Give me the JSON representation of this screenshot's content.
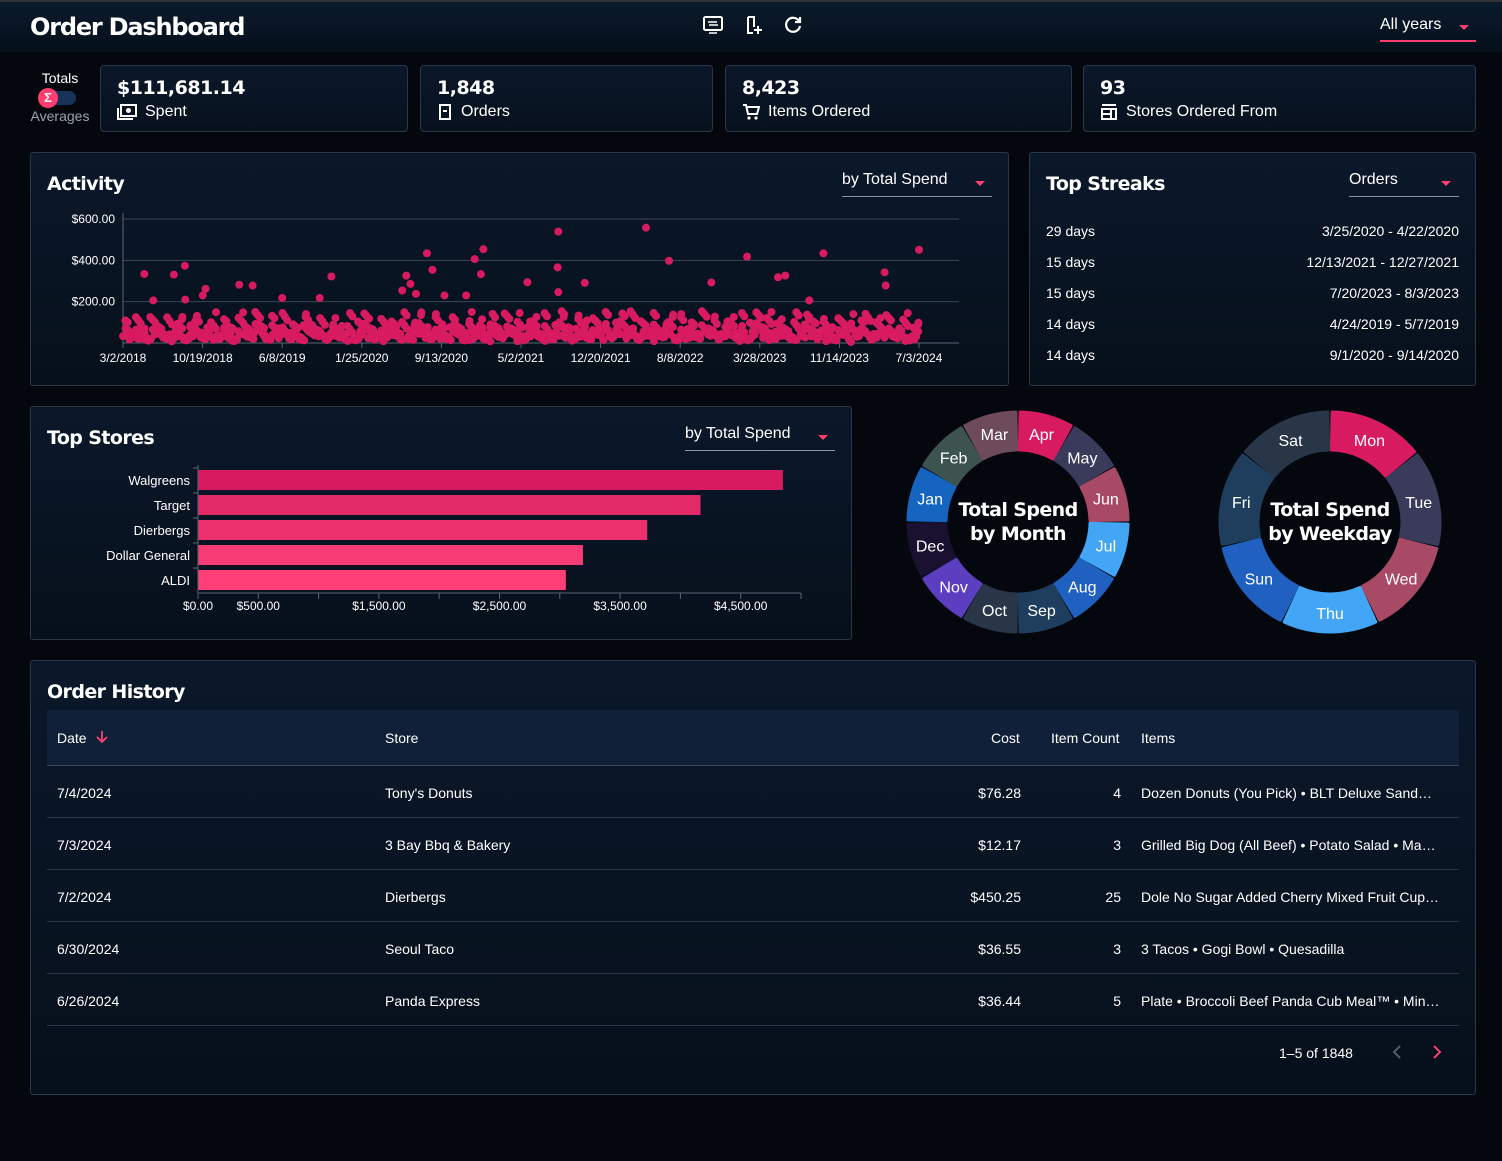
{
  "header": {
    "title": "Order Dashboard",
    "year_filter": "All years",
    "icons": [
      "display-settings-icon",
      "add-receipt-icon",
      "refresh-icon"
    ]
  },
  "mode_toggle": {
    "on_label": "Totals",
    "off_label": "Averages",
    "symbol": "Σ"
  },
  "stats": [
    {
      "value": "$111,681.14",
      "label": "Spent",
      "icon": "money-icon"
    },
    {
      "value": "1,848",
      "label": "Orders",
      "icon": "order-icon"
    },
    {
      "value": "8,423",
      "label": "Items Ordered",
      "icon": "cart-icon"
    },
    {
      "value": "93",
      "label": "Stores Ordered From",
      "icon": "store-icon"
    }
  ],
  "activity": {
    "title": "Activity",
    "sort": "by Total Spend"
  },
  "streaks": {
    "title": "Top Streaks",
    "sort": "Orders",
    "items": [
      {
        "length": "29 days",
        "range": "3/25/2020 - 4/22/2020"
      },
      {
        "length": "15 days",
        "range": "12/13/2021 - 12/27/2021"
      },
      {
        "length": "15 days",
        "range": "7/20/2023 - 8/3/2023"
      },
      {
        "length": "14 days",
        "range": "4/24/2019 - 5/7/2019"
      },
      {
        "length": "14 days",
        "range": "9/1/2020 - 9/14/2020"
      }
    ]
  },
  "top_stores": {
    "title": "Top Stores",
    "sort": "by Total Spend"
  },
  "month_donut": {
    "title_line1": "Total Spend",
    "title_line2": "by Month"
  },
  "weekday_donut": {
    "title_line1": "Total Spend",
    "title_line2": "by Weekday"
  },
  "chart_data": [
    {
      "type": "scatter",
      "name": "activity",
      "x_start": "3/2/2018",
      "x_unit": "days since 3/2/2018",
      "xlim": [
        0,
        2315
      ],
      "ylim": [
        0,
        600
      ],
      "y_ticks": [
        "$600.00",
        "$400.00",
        "$200.00"
      ],
      "y_tick_values": [
        600,
        400,
        200
      ],
      "x_ticks": [
        "3/2/2018",
        "10/19/2018",
        "6/8/2019",
        "1/25/2020",
        "9/13/2020",
        "5/2/2021",
        "12/20/2021",
        "8/8/2022",
        "3/28/2023",
        "11/14/2023",
        "7/3/2024"
      ],
      "outliers": [
        [
          62,
          334
        ],
        [
          88,
          206
        ],
        [
          148,
          331
        ],
        [
          180,
          374
        ],
        [
          181,
          210
        ],
        [
          240,
          262
        ],
        [
          232,
          230
        ],
        [
          338,
          282
        ],
        [
          377,
          278
        ],
        [
          463,
          218
        ],
        [
          606,
          322
        ],
        [
          572,
          218
        ],
        [
          824,
          326
        ],
        [
          836,
          286
        ],
        [
          812,
          254
        ],
        [
          884,
          434
        ],
        [
          900,
          354
        ],
        [
          852,
          238
        ],
        [
          935,
          230
        ],
        [
          1023,
          406
        ],
        [
          1048,
          454
        ],
        [
          1041,
          333
        ],
        [
          998,
          230
        ],
        [
          1176,
          294
        ],
        [
          1266,
          539
        ],
        [
          1264,
          366
        ],
        [
          1266,
          246
        ],
        [
          1343,
          291
        ],
        [
          1521,
          558
        ],
        [
          1588,
          398
        ],
        [
          1711,
          293
        ],
        [
          1815,
          418
        ],
        [
          1905,
          318
        ],
        [
          1926,
          326
        ],
        [
          1996,
          206
        ],
        [
          2037,
          434
        ],
        [
          2215,
          342
        ],
        [
          2218,
          278
        ],
        [
          2315,
          451
        ]
      ],
      "typical_values": [
        95,
        40,
        150,
        60,
        20,
        120,
        80,
        35,
        170,
        55,
        110,
        25,
        90,
        140,
        45,
        70,
        160,
        30,
        100,
        65,
        15,
        130,
        85,
        50,
        145,
        75,
        20,
        115,
        60,
        175,
        40,
        95,
        25,
        135,
        80,
        55,
        165,
        30,
        105,
        70,
        45,
        155,
        20,
        90,
        125,
        60,
        35,
        140,
        75,
        110,
        50,
        160,
        25,
        85,
        130,
        65,
        40,
        150,
        95,
        30,
        120,
        70,
        15,
        145,
        55,
        100,
        35,
        170,
        80,
        45,
        125,
        60,
        140,
        25,
        90,
        110,
        50,
        155,
        30,
        75,
        135,
        65,
        20,
        160,
        95,
        40,
        115,
        70,
        145,
        35,
        85,
        125,
        55,
        165,
        30,
        100,
        60,
        140,
        45,
        80,
        120,
        25,
        150,
        70,
        95,
        40,
        135,
        60,
        175,
        35,
        90,
        110,
        50,
        155,
        20,
        85,
        130,
        65,
        145,
        45,
        100,
        75,
        30,
        160,
        55,
        120,
        90,
        40,
        140,
        65,
        25,
        115,
        80,
        150,
        50,
        95,
        170,
        35,
        105,
        70,
        130,
        45,
        60,
        155,
        25,
        85
      ]
    },
    {
      "type": "bar",
      "name": "top_stores",
      "orientation": "horizontal",
      "categories": [
        "Walgreens",
        "Target",
        "Dierbergs",
        "Dollar General",
        "ALDI"
      ],
      "values": [
        4850,
        4167,
        3725,
        3192,
        3050
      ],
      "xlim": [
        0,
        5000
      ],
      "x_ticks": [
        "$0.00",
        "$500.00",
        "$1,500.00",
        "$2,500.00",
        "$3,500.00",
        "$4,500.00"
      ],
      "x_tick_values": [
        0,
        500,
        1500,
        2500,
        3500,
        4500
      ],
      "colors": [
        "#d81b60",
        "#e32a68",
        "#ec306e",
        "#f73b74",
        "#ff3d77"
      ]
    },
    {
      "type": "pie",
      "name": "month_donut",
      "categories": [
        "Jan",
        "Feb",
        "Mar",
        "Apr",
        "May",
        "Jun",
        "Jul",
        "Aug",
        "Sep",
        "Oct",
        "Nov",
        "Dec"
      ],
      "values": [
        1,
        1,
        1,
        1,
        1,
        1,
        1,
        1,
        1,
        1,
        1,
        1
      ],
      "start_category": "Apr",
      "colors": [
        "#1565c0",
        "#3d5350",
        "#6e4b5a",
        "#d81b60",
        "#3a3a5a",
        "#a84a66",
        "#42a5f5",
        "#2060c0",
        "#1f3d5c",
        "#283648",
        "#5b3fc0",
        "#1a1030"
      ]
    },
    {
      "type": "pie",
      "name": "weekday_donut",
      "categories": [
        "Mon",
        "Tue",
        "Wed",
        "Thu",
        "Sun",
        "Fri",
        "Sat"
      ],
      "values": [
        1,
        1,
        1,
        1,
        1,
        1,
        1
      ],
      "start_category": "Mon",
      "colors": [
        "#d81b60",
        "#3a3a5a",
        "#a84a66",
        "#42a5f5",
        "#2060c0",
        "#1f3d5c",
        "#283648"
      ]
    }
  ],
  "order_history": {
    "title": "Order History",
    "columns": {
      "date": "Date",
      "store": "Store",
      "cost": "Cost",
      "count": "Item Count",
      "items": "Items"
    },
    "rows": [
      {
        "date": "7/4/2024",
        "store": "Tony's Donuts",
        "cost": "$76.28",
        "count": "4",
        "items": "Dozen Donuts (You Pick) • BLT Deluxe Sand…"
      },
      {
        "date": "7/3/2024",
        "store": "3 Bay Bbq & Bakery",
        "cost": "$12.17",
        "count": "3",
        "items": "Grilled Big Dog (All Beef) • Potato Salad • Ma…"
      },
      {
        "date": "7/2/2024",
        "store": "Dierbergs",
        "cost": "$450.25",
        "count": "25",
        "items": "Dole No Sugar Added Cherry Mixed Fruit Cup…"
      },
      {
        "date": "6/30/2024",
        "store": "Seoul Taco",
        "cost": "$36.55",
        "count": "3",
        "items": "3 Tacos • Gogi Bowl • Quesadilla"
      },
      {
        "date": "6/26/2024",
        "store": "Panda Express",
        "cost": "$36.44",
        "count": "5",
        "items": "Plate • Broccoli Beef Panda Cub Meal™ • Min…"
      }
    ],
    "pagination": "1–5 of 1848"
  },
  "colors": {
    "accent": "#ff3d6e",
    "point": "#d81b60"
  }
}
